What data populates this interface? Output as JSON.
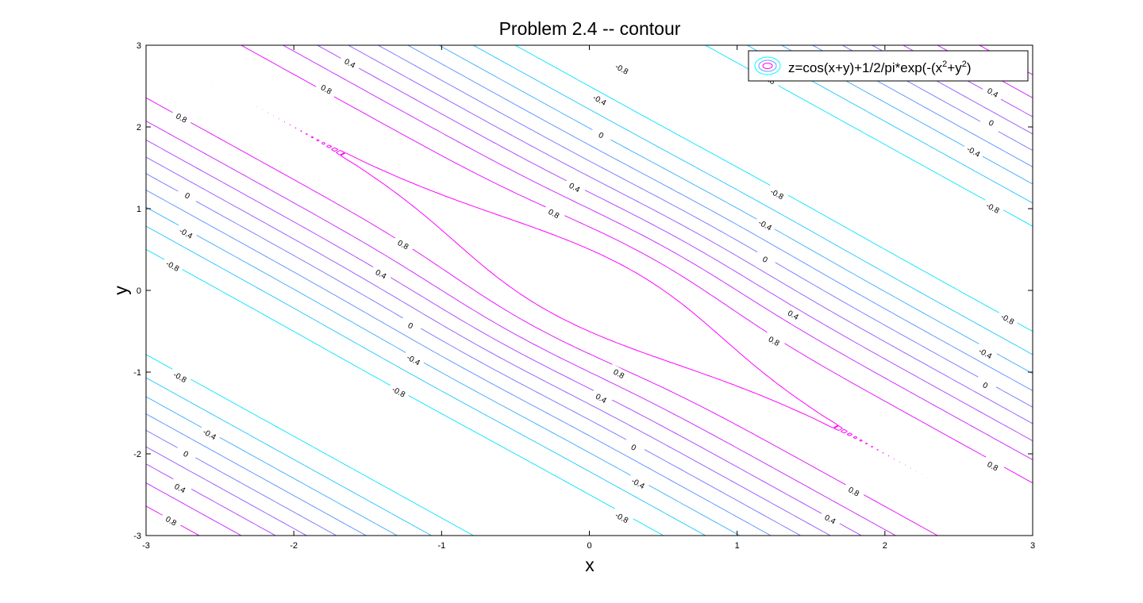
{
  "chart_data": {
    "type": "contour",
    "title": "Problem 2.4 -- contour",
    "xlabel": "x",
    "ylabel": "y",
    "xlim": [
      -3,
      3
    ],
    "ylim": [
      -3,
      3
    ],
    "xticks": [
      -3,
      -2,
      -1,
      0,
      1,
      2,
      3
    ],
    "yticks": [
      -3,
      -2,
      -1,
      0,
      1,
      2,
      3
    ],
    "xtick_labels": [
      "-3",
      "-2",
      "-1",
      "0",
      "1",
      "2",
      "3"
    ],
    "ytick_labels": [
      "-3",
      "-2",
      "-1",
      "0",
      "1",
      "2",
      "3"
    ],
    "function": "z=cos(x+y)+1/2/pi*exp(-(x^2+y^2))",
    "levels": [
      -1.0,
      -0.8,
      -0.6,
      -0.4,
      -0.2,
      0,
      0.2,
      0.4,
      0.6,
      0.8,
      1.0
    ],
    "colormap": "cool",
    "colors": {
      "low": "#00ffff",
      "high": "#ff00ff",
      "axes": "#000000",
      "background": "#ffffff"
    },
    "grid": false,
    "box": true,
    "legend": {
      "placement": "top-right",
      "text_pre": "z=cos(x+y)+1/2/pi*exp(-(x",
      "sup1": "2",
      "text_mid": "+y",
      "sup2": "2",
      "text_post": ")"
    },
    "contour_labels": [
      {
        "text": "0.4",
        "x": -1.62,
        "y": 2.78
      },
      {
        "text": "0.8",
        "x": -1.78,
        "y": 2.46
      },
      {
        "text": "0.8",
        "x": -2.76,
        "y": 2.11
      },
      {
        "text": "0",
        "x": -2.72,
        "y": 1.16
      },
      {
        "text": "-0.4",
        "x": -2.73,
        "y": 0.7
      },
      {
        "text": "-0.8",
        "x": -2.82,
        "y": 0.3
      },
      {
        "text": "0.8",
        "x": -1.26,
        "y": 0.56
      },
      {
        "text": "0.4",
        "x": -1.41,
        "y": 0.2
      },
      {
        "text": "0",
        "x": -1.21,
        "y": -0.43
      },
      {
        "text": "-0.4",
        "x": -1.19,
        "y": -0.85
      },
      {
        "text": "-0.8",
        "x": -1.29,
        "y": -1.24
      },
      {
        "text": "-0.8",
        "x": 0.22,
        "y": 2.71
      },
      {
        "text": "-0.4",
        "x": 0.07,
        "y": 2.33
      },
      {
        "text": "0",
        "x": 0.08,
        "y": 1.9
      },
      {
        "text": "0.4",
        "x": -0.1,
        "y": 1.26
      },
      {
        "text": "0.8",
        "x": -0.24,
        "y": 0.94
      },
      {
        "text": "0.8",
        "x": 0.2,
        "y": -1.02
      },
      {
        "text": "0.4",
        "x": 0.08,
        "y": -1.32
      },
      {
        "text": "0",
        "x": 0.3,
        "y": -1.92
      },
      {
        "text": "-0.4",
        "x": 0.33,
        "y": -2.36
      },
      {
        "text": "-0.8",
        "x": 0.22,
        "y": -2.78
      },
      {
        "text": "0.8",
        "x": 1.22,
        "y": 2.58
      },
      {
        "text": "-0.8",
        "x": 1.27,
        "y": 1.18
      },
      {
        "text": "-0.4",
        "x": 1.19,
        "y": 0.8
      },
      {
        "text": "0",
        "x": 1.19,
        "y": 0.38
      },
      {
        "text": "0.4",
        "x": 1.38,
        "y": -0.3
      },
      {
        "text": "0.8",
        "x": 1.25,
        "y": -0.62
      },
      {
        "text": "0.4",
        "x": 2.73,
        "y": 2.42
      },
      {
        "text": "0",
        "x": 2.72,
        "y": 2.05
      },
      {
        "text": "-0.4",
        "x": 2.6,
        "y": 1.7
      },
      {
        "text": "-0.8",
        "x": 2.73,
        "y": 1.01
      },
      {
        "text": "-0.8",
        "x": 2.83,
        "y": -0.35
      },
      {
        "text": "-0.4",
        "x": 2.68,
        "y": -0.77
      },
      {
        "text": "0",
        "x": 2.68,
        "y": -1.16
      },
      {
        "text": "0.8",
        "x": 2.73,
        "y": -2.15
      },
      {
        "text": "0.8",
        "x": 1.79,
        "y": -2.46
      },
      {
        "text": "0.4",
        "x": 1.63,
        "y": -2.8
      },
      {
        "text": "-0.8",
        "x": -2.77,
        "y": -1.06
      },
      {
        "text": "-0.4",
        "x": -2.57,
        "y": -1.76
      },
      {
        "text": "0",
        "x": -2.73,
        "y": -2.0
      },
      {
        "text": "0.4",
        "x": -2.77,
        "y": -2.42
      },
      {
        "text": "0.8",
        "x": -2.83,
        "y": -2.82
      }
    ]
  }
}
